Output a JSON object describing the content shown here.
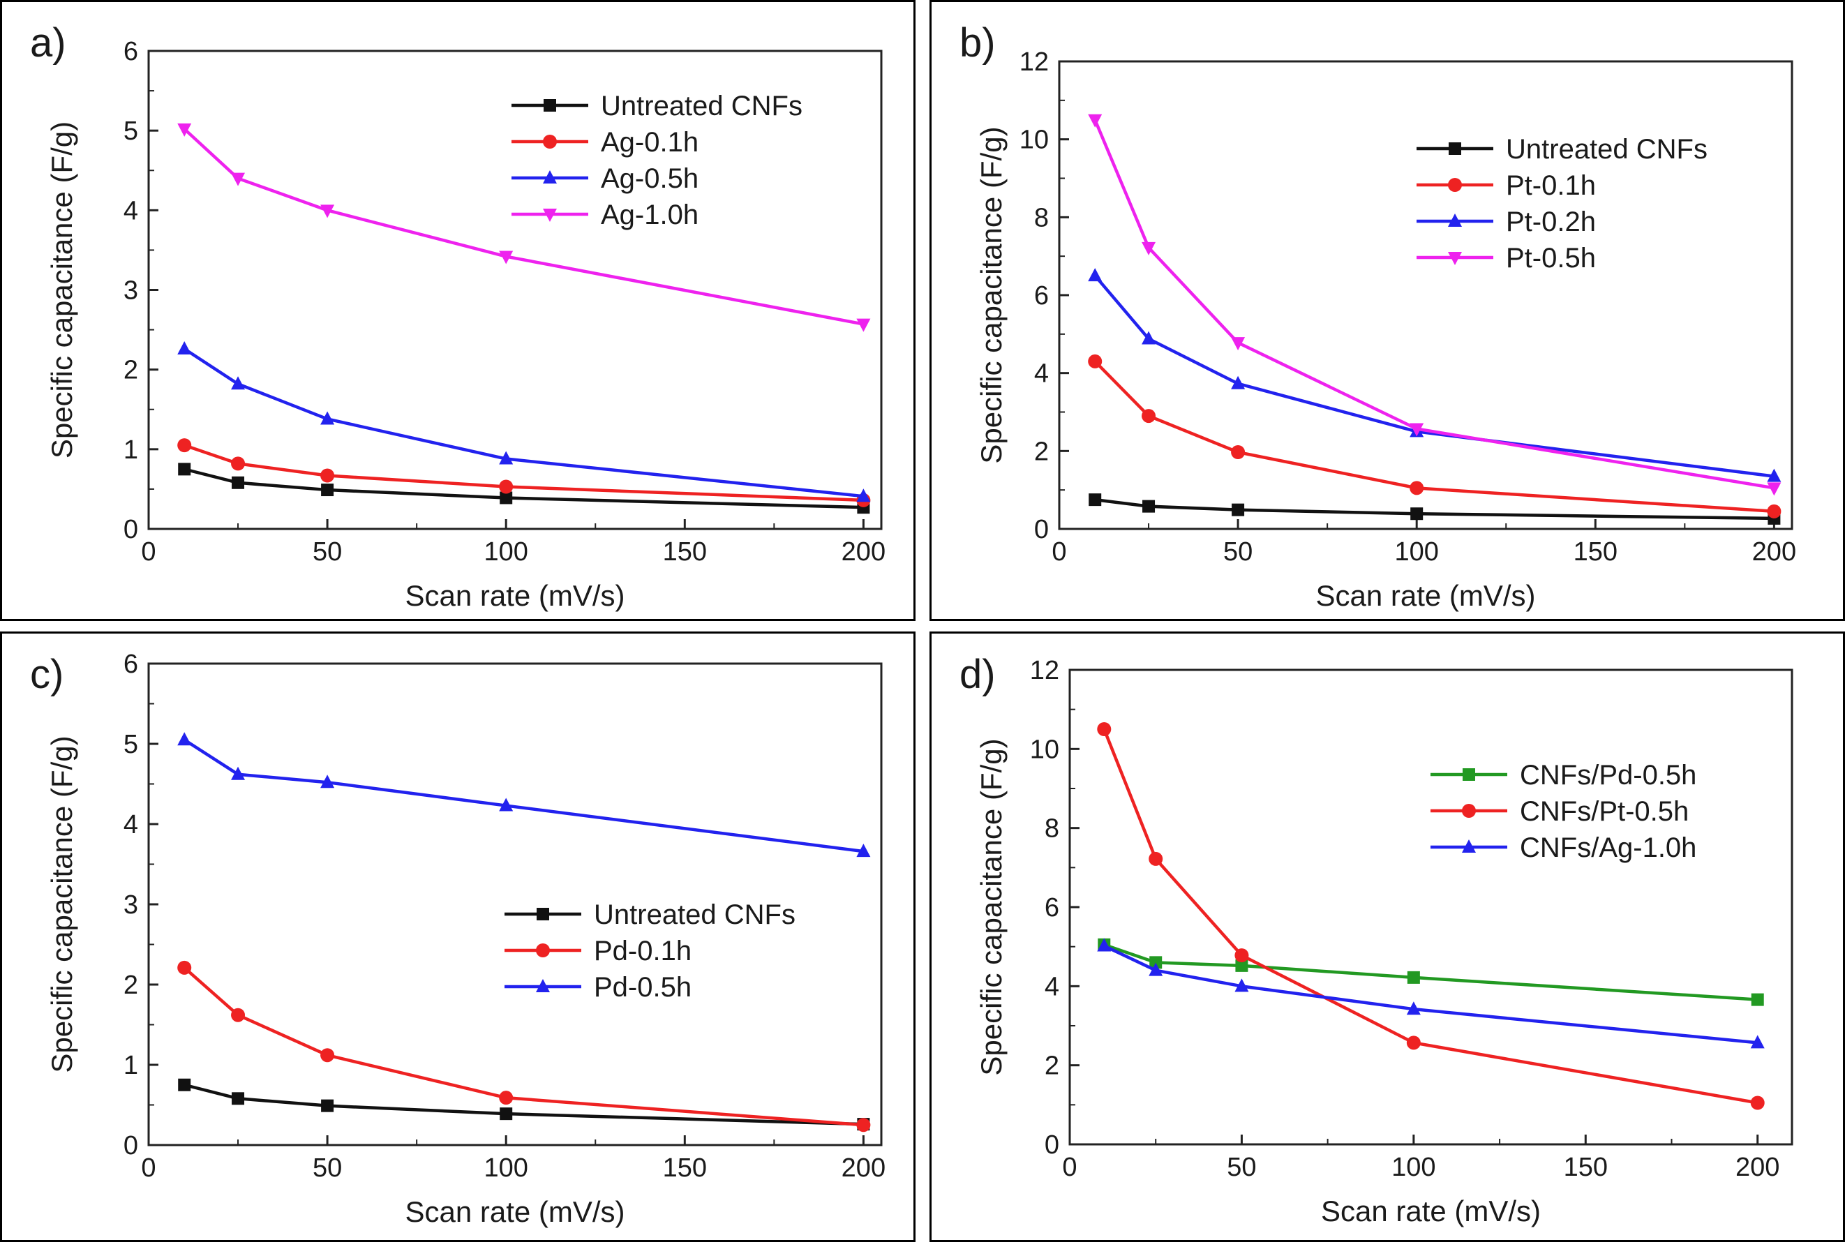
{
  "figure": {
    "description_label": "Specific capacitance vs scan rate for treated CNFs"
  },
  "colors": {
    "black": "#111111",
    "red": "#ee2222",
    "blue": "#2222ee",
    "magenta": "#ee22ee",
    "green": "#229922"
  },
  "chart_data": [
    {
      "panel": "a)",
      "type": "line",
      "xlabel": "Scan rate (mV/s)",
      "ylabel": "Specific capacitance (F/g)",
      "xlim": [
        0,
        205
      ],
      "ylim": [
        0,
        6
      ],
      "xticks": [
        0,
        50,
        100,
        150,
        200
      ],
      "yticks": [
        0,
        1,
        2,
        3,
        4,
        5,
        6
      ],
      "legend_position": "top-right",
      "series": [
        {
          "name": "Untreated CNFs",
          "color": "#111111",
          "marker": "square",
          "x": [
            10,
            25,
            50,
            100,
            200
          ],
          "y": [
            0.75,
            0.58,
            0.49,
            0.39,
            0.27
          ]
        },
        {
          "name": "Ag-0.1h",
          "color": "#ee2222",
          "marker": "circle",
          "x": [
            10,
            25,
            50,
            100,
            200
          ],
          "y": [
            1.05,
            0.82,
            0.67,
            0.53,
            0.36
          ]
        },
        {
          "name": "Ag-0.5h",
          "color": "#2222ee",
          "marker": "triangle-up",
          "x": [
            10,
            25,
            50,
            100,
            200
          ],
          "y": [
            2.26,
            1.82,
            1.38,
            0.88,
            0.41
          ]
        },
        {
          "name": "Ag-1.0h",
          "color": "#ee22ee",
          "marker": "triangle-down",
          "x": [
            10,
            25,
            50,
            100,
            200
          ],
          "y": [
            5.02,
            4.4,
            4.0,
            3.42,
            2.57
          ]
        }
      ]
    },
    {
      "panel": "b)",
      "type": "line",
      "xlabel": "Scan rate (mV/s)",
      "ylabel": "Specific capacitance (F/g)",
      "xlim": [
        0,
        205
      ],
      "ylim": [
        0,
        12
      ],
      "xticks": [
        0,
        50,
        100,
        150,
        200
      ],
      "yticks": [
        0,
        2,
        4,
        6,
        8,
        10,
        12
      ],
      "legend_position": "top-right",
      "series": [
        {
          "name": "Untreated CNFs",
          "color": "#111111",
          "marker": "square",
          "x": [
            10,
            25,
            50,
            100,
            200
          ],
          "y": [
            0.75,
            0.58,
            0.49,
            0.39,
            0.27
          ]
        },
        {
          "name": "Pt-0.1h",
          "color": "#ee2222",
          "marker": "circle",
          "x": [
            10,
            25,
            50,
            100,
            200
          ],
          "y": [
            4.3,
            2.9,
            1.97,
            1.05,
            0.45
          ]
        },
        {
          "name": "Pt-0.2h",
          "color": "#2222ee",
          "marker": "triangle-up",
          "x": [
            10,
            25,
            50,
            100,
            200
          ],
          "y": [
            6.5,
            4.88,
            3.73,
            2.5,
            1.35
          ]
        },
        {
          "name": "Pt-0.5h",
          "color": "#ee22ee",
          "marker": "triangle-down",
          "x": [
            10,
            25,
            50,
            100,
            200
          ],
          "y": [
            10.5,
            7.22,
            4.78,
            2.57,
            1.05
          ]
        }
      ]
    },
    {
      "panel": "c)",
      "type": "line",
      "xlabel": "Scan rate (mV/s)",
      "ylabel": "Specific capacitance (F/g)",
      "xlim": [
        0,
        205
      ],
      "ylim": [
        0,
        6
      ],
      "xticks": [
        0,
        50,
        100,
        150,
        200
      ],
      "yticks": [
        0,
        1,
        2,
        3,
        4,
        5,
        6
      ],
      "legend_position": "center-right",
      "series": [
        {
          "name": "Untreated CNFs",
          "color": "#111111",
          "marker": "square",
          "x": [
            10,
            25,
            50,
            100,
            200
          ],
          "y": [
            0.75,
            0.58,
            0.49,
            0.39,
            0.26
          ]
        },
        {
          "name": "Pd-0.1h",
          "color": "#ee2222",
          "marker": "circle",
          "x": [
            10,
            25,
            50,
            100,
            200
          ],
          "y": [
            2.21,
            1.62,
            1.12,
            0.59,
            0.25
          ]
        },
        {
          "name": "Pd-0.5h",
          "color": "#2222ee",
          "marker": "triangle-up",
          "x": [
            10,
            25,
            50,
            100,
            200
          ],
          "y": [
            5.05,
            4.62,
            4.52,
            4.23,
            3.66
          ]
        }
      ]
    },
    {
      "panel": "d)",
      "type": "line",
      "xlabel": "Scan rate (mV/s)",
      "ylabel": "Specific capacitance (F/g)",
      "xlim": [
        0,
        210
      ],
      "ylim": [
        0,
        12
      ],
      "xticks": [
        0,
        50,
        100,
        150,
        200
      ],
      "yticks": [
        0,
        2,
        4,
        6,
        8,
        10,
        12
      ],
      "legend_position": "upper-right",
      "series": [
        {
          "name": "CNFs/Pd-0.5h",
          "color": "#229922",
          "marker": "square",
          "x": [
            10,
            25,
            50,
            100,
            200
          ],
          "y": [
            5.05,
            4.6,
            4.52,
            4.22,
            3.66
          ]
        },
        {
          "name": "CNFs/Pt-0.5h",
          "color": "#ee2222",
          "marker": "circle",
          "x": [
            10,
            25,
            50,
            100,
            200
          ],
          "y": [
            10.5,
            7.22,
            4.78,
            2.57,
            1.05
          ]
        },
        {
          "name": "CNFs/Ag-1.0h",
          "color": "#2222ee",
          "marker": "triangle-up",
          "x": [
            10,
            25,
            50,
            100,
            200
          ],
          "y": [
            5.02,
            4.4,
            4.0,
            3.42,
            2.57
          ]
        }
      ]
    }
  ]
}
